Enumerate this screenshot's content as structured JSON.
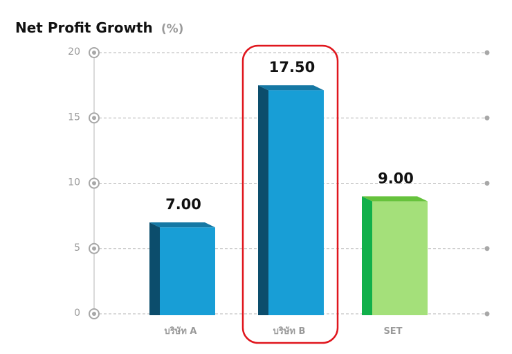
{
  "chart_data": {
    "type": "bar",
    "title": "Net Profit Growth",
    "title_unit": "(%)",
    "categories": [
      "บริษัท A",
      "บริษัท B",
      "SET"
    ],
    "values": [
      7.0,
      17.5,
      9.0
    ],
    "value_labels": [
      "7.00",
      "17.50",
      "9.00"
    ],
    "y_ticks": [
      "0",
      "5",
      "10",
      "15",
      "20"
    ],
    "ylim": [
      0,
      20
    ],
    "grid": true,
    "highlighted_category": "บริษัท B",
    "colors": {
      "bar_front_blue": "#189ed6",
      "bar_side_blue": "#0c4d6c",
      "bar_top_blue": "#1578a4",
      "bar_front_green": "#a4e07a",
      "bar_side_green": "#11b04a",
      "bar_top_green": "#66c23c",
      "highlight": "#e0161d",
      "grid": "#b5b5b5",
      "tick_text": "#9a9a9a"
    }
  }
}
